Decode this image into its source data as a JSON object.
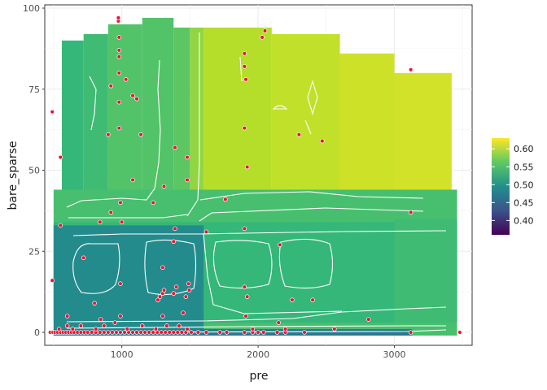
{
  "chart_data": {
    "type": "heatmap",
    "title": "",
    "xlabel": "pre",
    "ylabel": "bare_sparse",
    "xlim": [
      435,
      3570
    ],
    "ylim": [
      -4,
      101
    ],
    "x_ticks": [
      1000,
      2000,
      3000
    ],
    "y_ticks": [
      0,
      25,
      50,
      75,
      100
    ],
    "grid": true,
    "legend_position": "right",
    "fill_scale": {
      "name": "viridis",
      "limits": [
        0.36,
        0.63
      ],
      "breaks": [
        0.4,
        0.45,
        0.5,
        0.55,
        0.6
      ]
    },
    "tiles": [
      {
        "x": [
          560,
          720
        ],
        "y": [
          -1,
          90
        ],
        "value": 0.54
      },
      {
        "x": [
          720,
          900
        ],
        "y": [
          -1,
          92
        ],
        "value": 0.545
      },
      {
        "x": [
          900,
          1150
        ],
        "y": [
          -1,
          95
        ],
        "value": 0.555
      },
      {
        "x": [
          1150,
          1380
        ],
        "y": [
          -1,
          97
        ],
        "value": 0.555
      },
      {
        "x": [
          1380,
          1500
        ],
        "y": [
          -1,
          94
        ],
        "value": 0.56
      },
      {
        "x": [
          1500,
          1600
        ],
        "y": [
          -1,
          94
        ],
        "value": 0.585
      },
      {
        "x": [
          1600,
          2100
        ],
        "y": [
          -1,
          94
        ],
        "value": 0.6
      },
      {
        "x": [
          2100,
          2600
        ],
        "y": [
          -1,
          92
        ],
        "value": 0.605
      },
      {
        "x": [
          2600,
          3000
        ],
        "y": [
          -1,
          86
        ],
        "value": 0.61
      },
      {
        "x": [
          3000,
          3420
        ],
        "y": [
          -1,
          80
        ],
        "value": 0.612
      },
      {
        "x": [
          500,
          3460
        ],
        "y": [
          -1,
          44
        ],
        "value": 0.55
      },
      {
        "x": [
          500,
          3460
        ],
        "y": [
          3,
          34
        ],
        "value": 0.54
      },
      {
        "x": [
          500,
          1600
        ],
        "y": [
          -1,
          33
        ],
        "value": 0.49
      },
      {
        "x": [
          3000,
          3460
        ],
        "y": [
          3,
          35
        ],
        "value": 0.545
      },
      {
        "x": [
          500,
          3130
        ],
        "y": [
          -1,
          1
        ],
        "value": 0.47
      }
    ],
    "contour_levels": [
      0.45,
      0.5,
      0.55,
      0.6
    ],
    "points": [
      {
        "x": 475,
        "y": 0
      },
      {
        "x": 495,
        "y": 0
      },
      {
        "x": 510,
        "y": 0
      },
      {
        "x": 530,
        "y": 0
      },
      {
        "x": 550,
        "y": 0
      },
      {
        "x": 570,
        "y": 0
      },
      {
        "x": 590,
        "y": 0
      },
      {
        "x": 610,
        "y": 0
      },
      {
        "x": 630,
        "y": 0
      },
      {
        "x": 650,
        "y": 0
      },
      {
        "x": 675,
        "y": 0
      },
      {
        "x": 700,
        "y": 0
      },
      {
        "x": 725,
        "y": 0
      },
      {
        "x": 750,
        "y": 0
      },
      {
        "x": 780,
        "y": 0
      },
      {
        "x": 810,
        "y": 0
      },
      {
        "x": 840,
        "y": 0
      },
      {
        "x": 870,
        "y": 0
      },
      {
        "x": 900,
        "y": 0
      },
      {
        "x": 930,
        "y": 0
      },
      {
        "x": 960,
        "y": 0
      },
      {
        "x": 990,
        "y": 0
      },
      {
        "x": 1020,
        "y": 0
      },
      {
        "x": 1050,
        "y": 0
      },
      {
        "x": 1080,
        "y": 0
      },
      {
        "x": 1110,
        "y": 0
      },
      {
        "x": 1140,
        "y": 0
      },
      {
        "x": 1170,
        "y": 0
      },
      {
        "x": 1200,
        "y": 0
      },
      {
        "x": 1230,
        "y": 0
      },
      {
        "x": 1260,
        "y": 0
      },
      {
        "x": 1290,
        "y": 0
      },
      {
        "x": 1320,
        "y": 0
      },
      {
        "x": 1350,
        "y": 0
      },
      {
        "x": 1380,
        "y": 0
      },
      {
        "x": 1410,
        "y": 0
      },
      {
        "x": 1440,
        "y": 0
      },
      {
        "x": 1470,
        "y": 0
      },
      {
        "x": 1510,
        "y": 0
      },
      {
        "x": 1560,
        "y": 0
      },
      {
        "x": 1620,
        "y": 0
      },
      {
        "x": 1720,
        "y": 0
      },
      {
        "x": 1770,
        "y": 0
      },
      {
        "x": 1900,
        "y": 0
      },
      {
        "x": 1960,
        "y": 0
      },
      {
        "x": 2000,
        "y": 0
      },
      {
        "x": 2040,
        "y": 0
      },
      {
        "x": 2140,
        "y": 0
      },
      {
        "x": 2200,
        "y": 0
      },
      {
        "x": 2340,
        "y": 0
      },
      {
        "x": 3120,
        "y": 0
      },
      {
        "x": 3480,
        "y": 0
      },
      {
        "x": 540,
        "y": 1
      },
      {
        "x": 600,
        "y": 2
      },
      {
        "x": 640,
        "y": 1
      },
      {
        "x": 700,
        "y": 2
      },
      {
        "x": 810,
        "y": 1
      },
      {
        "x": 870,
        "y": 2
      },
      {
        "x": 950,
        "y": 3
      },
      {
        "x": 1040,
        "y": 1
      },
      {
        "x": 1150,
        "y": 2
      },
      {
        "x": 1250,
        "y": 1
      },
      {
        "x": 1330,
        "y": 2
      },
      {
        "x": 1420,
        "y": 2
      },
      {
        "x": 1480,
        "y": 1
      },
      {
        "x": 1960,
        "y": 1
      },
      {
        "x": 2150,
        "y": 3
      },
      {
        "x": 2200,
        "y": 1
      },
      {
        "x": 2560,
        "y": 1
      },
      {
        "x": 2810,
        "y": 4
      },
      {
        "x": 600,
        "y": 5
      },
      {
        "x": 845,
        "y": 4
      },
      {
        "x": 990,
        "y": 5
      },
      {
        "x": 1300,
        "y": 5
      },
      {
        "x": 1450,
        "y": 6
      },
      {
        "x": 1910,
        "y": 5
      },
      {
        "x": 800,
        "y": 9
      },
      {
        "x": 2250,
        "y": 10
      },
      {
        "x": 2400,
        "y": 10
      },
      {
        "x": 1920,
        "y": 11
      },
      {
        "x": 1265,
        "y": 10
      },
      {
        "x": 1280,
        "y": 11
      },
      {
        "x": 1300,
        "y": 12
      },
      {
        "x": 1310,
        "y": 13
      },
      {
        "x": 1380,
        "y": 12
      },
      {
        "x": 1470,
        "y": 11
      },
      {
        "x": 1400,
        "y": 14
      },
      {
        "x": 1490,
        "y": 15
      },
      {
        "x": 1495,
        "y": 13
      },
      {
        "x": 1900,
        "y": 14
      },
      {
        "x": 490,
        "y": 16
      },
      {
        "x": 990,
        "y": 15
      },
      {
        "x": 1300,
        "y": 20
      },
      {
        "x": 720,
        "y": 23
      },
      {
        "x": 2160,
        "y": 27
      },
      {
        "x": 1380,
        "y": 28
      },
      {
        "x": 1390,
        "y": 32
      },
      {
        "x": 1900,
        "y": 32
      },
      {
        "x": 1620,
        "y": 31
      },
      {
        "x": 840,
        "y": 34
      },
      {
        "x": 550,
        "y": 33
      },
      {
        "x": 920,
        "y": 37
      },
      {
        "x": 1000,
        "y": 34
      },
      {
        "x": 990,
        "y": 40
      },
      {
        "x": 1230,
        "y": 40
      },
      {
        "x": 3120,
        "y": 37
      },
      {
        "x": 1760,
        "y": 41
      },
      {
        "x": 1310,
        "y": 45
      },
      {
        "x": 1480,
        "y": 47
      },
      {
        "x": 1080,
        "y": 47
      },
      {
        "x": 1920,
        "y": 51
      },
      {
        "x": 550,
        "y": 54
      },
      {
        "x": 1480,
        "y": 54
      },
      {
        "x": 1390,
        "y": 57
      },
      {
        "x": 2470,
        "y": 59
      },
      {
        "x": 900,
        "y": 61
      },
      {
        "x": 1140,
        "y": 61
      },
      {
        "x": 2300,
        "y": 61
      },
      {
        "x": 490,
        "y": 68
      },
      {
        "x": 980,
        "y": 63
      },
      {
        "x": 1900,
        "y": 63
      },
      {
        "x": 980,
        "y": 71
      },
      {
        "x": 1080,
        "y": 73
      },
      {
        "x": 1110,
        "y": 72
      },
      {
        "x": 920,
        "y": 76
      },
      {
        "x": 1030,
        "y": 78
      },
      {
        "x": 980,
        "y": 80
      },
      {
        "x": 1910,
        "y": 78
      },
      {
        "x": 3120,
        "y": 81
      },
      {
        "x": 1900,
        "y": 82
      },
      {
        "x": 980,
        "y": 85
      },
      {
        "x": 980,
        "y": 87
      },
      {
        "x": 1900,
        "y": 86
      },
      {
        "x": 980,
        "y": 91
      },
      {
        "x": 2030,
        "y": 91
      },
      {
        "x": 2050,
        "y": 93
      },
      {
        "x": 975,
        "y": 96
      },
      {
        "x": 975,
        "y": 97
      }
    ]
  }
}
